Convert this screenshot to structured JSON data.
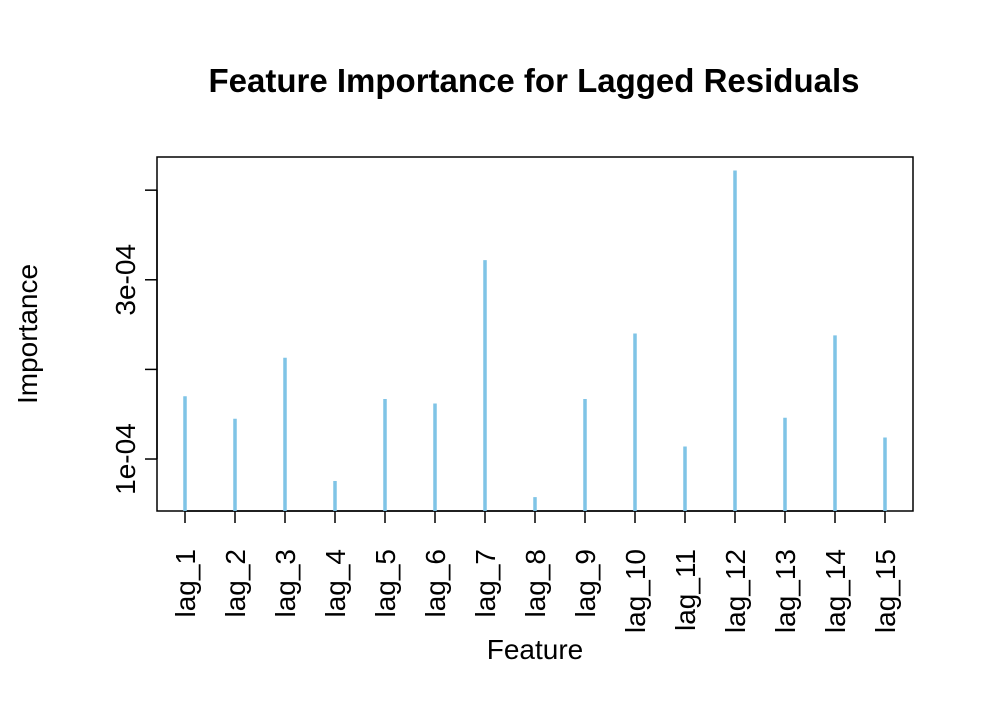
{
  "chart_data": {
    "type": "bar",
    "style": "vertical lines (histogram-like, type='h')",
    "title": "Feature Importance for Lagged Residuals",
    "xlabel": "Feature",
    "ylabel": "Importance",
    "categories": [
      "lag_1",
      "lag_2",
      "lag_3",
      "lag_4",
      "lag_5",
      "lag_6",
      "lag_7",
      "lag_8",
      "lag_9",
      "lag_10",
      "lag_11",
      "lag_12",
      "lag_13",
      "lag_14",
      "lag_15"
    ],
    "values": [
      0.00017,
      0.000145,
      0.000213,
      7.55e-05,
      0.000167,
      0.000162,
      0.000322,
      5.75e-05,
      0.000167,
      0.00024,
      0.000114,
      0.000422,
      0.000146,
      0.000238,
      0.000124
    ],
    "ylim": [
      4.2e-05,
      0.000437
    ],
    "yticks": [
      0.0001,
      0.0002,
      0.0003,
      0.0004
    ],
    "ytick_labels": [
      "1e-04",
      "",
      "3e-04",
      ""
    ],
    "color": "#7fc4e6",
    "grid": false,
    "legend": "none"
  }
}
